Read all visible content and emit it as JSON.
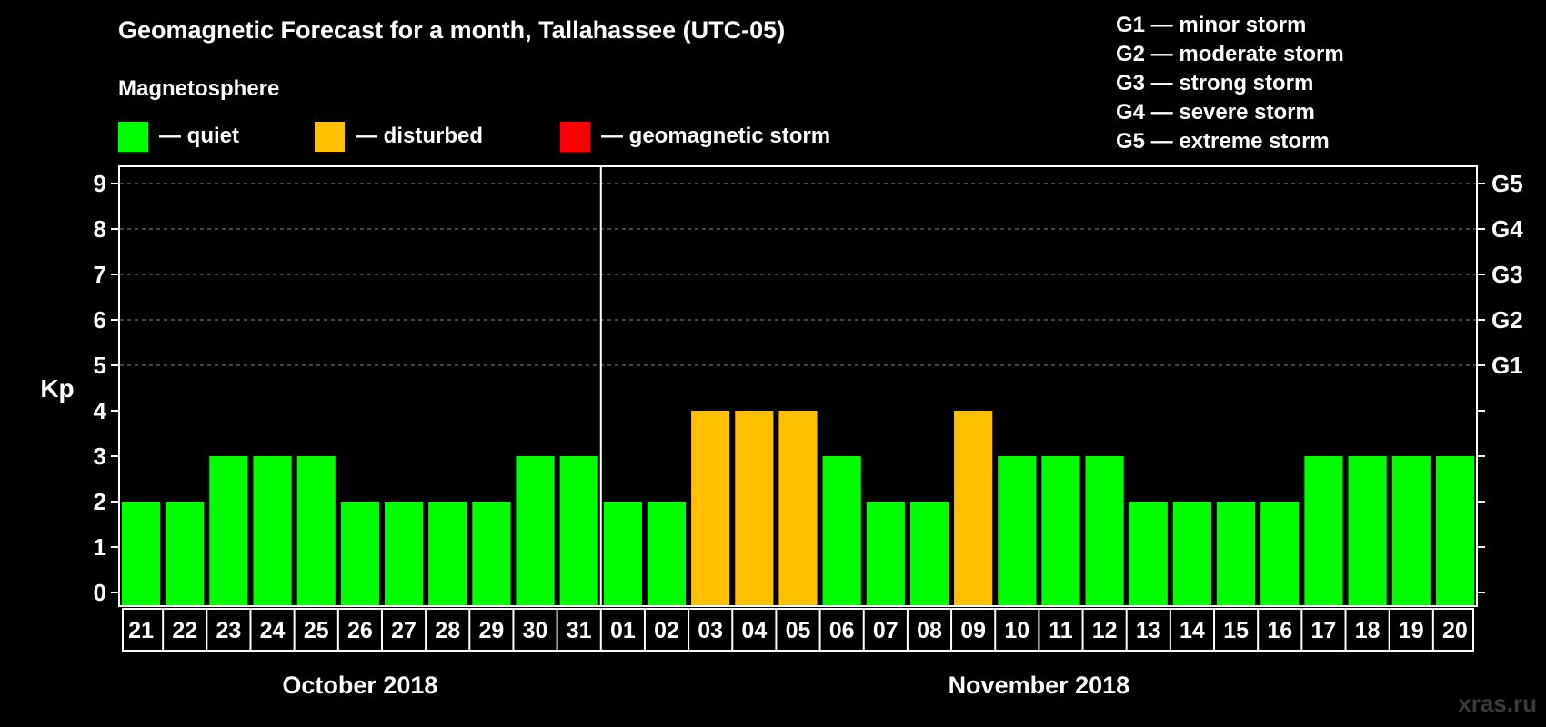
{
  "chart_data": {
    "type": "bar",
    "title": "Geomagnetic Forecast for a month, Tallahassee (UTC-05)",
    "subtitle": "Magnetosphere",
    "ylabel": "Kp",
    "ylim": [
      0,
      9
    ],
    "yticks": [
      "0",
      "1",
      "2",
      "3",
      "4",
      "5",
      "6",
      "7",
      "8",
      "9"
    ],
    "y2_labels": [
      {
        "kp": 5,
        "label": "G1"
      },
      {
        "kp": 6,
        "label": "G2"
      },
      {
        "kp": 7,
        "label": "G3"
      },
      {
        "kp": 8,
        "label": "G4"
      },
      {
        "kp": 9,
        "label": "G5"
      }
    ],
    "grid": true,
    "categories": [
      "21",
      "22",
      "23",
      "24",
      "25",
      "26",
      "27",
      "28",
      "29",
      "30",
      "31",
      "01",
      "02",
      "03",
      "04",
      "05",
      "06",
      "07",
      "08",
      "09",
      "10",
      "11",
      "12",
      "13",
      "14",
      "15",
      "16",
      "17",
      "18",
      "19",
      "20"
    ],
    "values": [
      2,
      2,
      3,
      3,
      3,
      2,
      2,
      2,
      2,
      3,
      3,
      2,
      2,
      4,
      4,
      4,
      3,
      2,
      2,
      4,
      3,
      3,
      3,
      2,
      2,
      2,
      2,
      3,
      3,
      3,
      3
    ],
    "months": [
      {
        "label": "October 2018",
        "start_index": 0,
        "end_index": 10
      },
      {
        "label": "November 2018",
        "start_index": 11,
        "end_index": 30
      }
    ],
    "legend": [
      {
        "label": "— quiet",
        "color": "#00ff00"
      },
      {
        "label": "— disturbed",
        "color": "#ffc000"
      },
      {
        "label": "— geomagnetic storm",
        "color": "#ff0000"
      }
    ],
    "legend_placement": "top-left"
  },
  "storm_scale": [
    "G1 — minor storm",
    "G2 — moderate storm",
    "G3 — strong storm",
    "G4 — severe storm",
    "G5 — extreme storm"
  ],
  "watermark": "xras.ru",
  "colors": {
    "background": "#000000",
    "quiet": "#00ff00",
    "disturbed": "#ffc000",
    "storm": "#ff0000",
    "axis": "#ffffff",
    "grid": "#888888"
  }
}
